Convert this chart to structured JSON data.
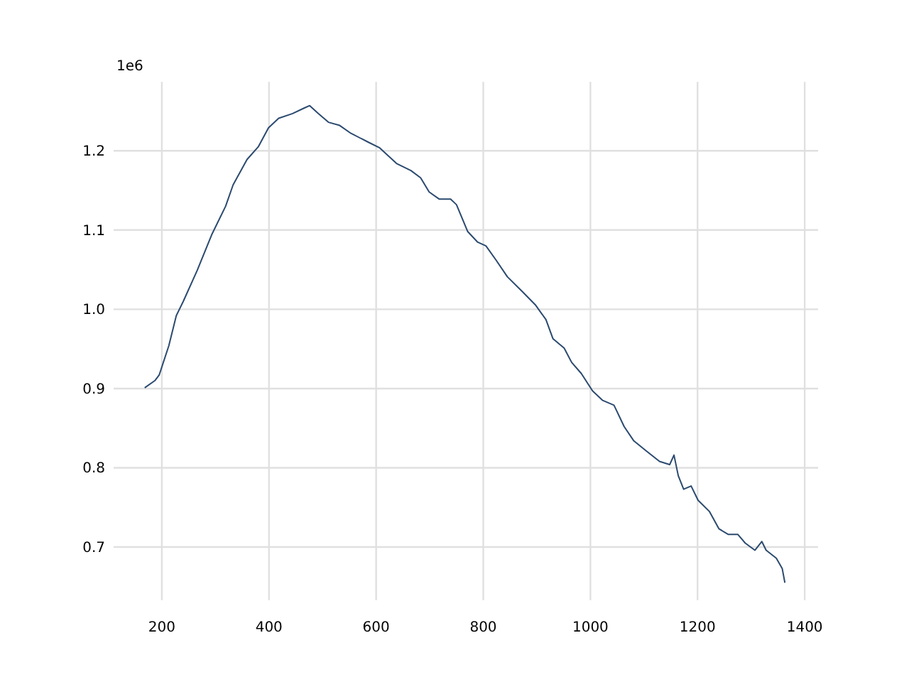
{
  "chart_data": {
    "type": "line",
    "annotations": [
      "1e6"
    ],
    "x": [
      168,
      187,
      195,
      213,
      227,
      240,
      266,
      293,
      319,
      333,
      359,
      380,
      399,
      418,
      444,
      466,
      476,
      492,
      511,
      532,
      553,
      585,
      606,
      638,
      665,
      683,
      699,
      718,
      739,
      750,
      771,
      789,
      805,
      824,
      845,
      872,
      898,
      917,
      930,
      951,
      965,
      983,
      1004,
      1023,
      1044,
      1063,
      1081,
      1103,
      1129,
      1148,
      1156,
      1164,
      1174,
      1188,
      1201,
      1222,
      1240,
      1257,
      1275,
      1289,
      1307,
      1320,
      1328,
      1347,
      1358,
      1363
    ],
    "series": [
      {
        "color": "#2b4a6f",
        "values": [
          0.901,
          0.91,
          0.917,
          0.954,
          0.992,
          1.01,
          1.049,
          1.094,
          1.13,
          1.157,
          1.189,
          1.205,
          1.229,
          1.241,
          1.247,
          1.254,
          1.257,
          1.247,
          1.236,
          1.232,
          1.222,
          1.211,
          1.204,
          1.184,
          1.175,
          1.166,
          1.148,
          1.139,
          1.139,
          1.132,
          1.098,
          1.085,
          1.08,
          1.062,
          1.041,
          1.023,
          1.005,
          0.987,
          0.963,
          0.951,
          0.933,
          0.919,
          0.897,
          0.885,
          0.879,
          0.852,
          0.834,
          0.822,
          0.808,
          0.804,
          0.816,
          0.79,
          0.773,
          0.777,
          0.759,
          0.745,
          0.723,
          0.716,
          0.716,
          0.705,
          0.696,
          0.707,
          0.696,
          0.686,
          0.673,
          0.655
        ]
      }
    ],
    "xlim": [
      110,
      1425
    ],
    "ylim": [
      0.633,
      1.287
    ],
    "xticks": [
      200,
      400,
      600,
      800,
      1000,
      1200,
      1400
    ],
    "yticks": [
      0.7,
      0.8,
      0.9,
      {
        "value": 1,
        "label": "1.0"
      },
      1.1,
      1.2
    ],
    "grid": true,
    "line_style": "solid"
  }
}
